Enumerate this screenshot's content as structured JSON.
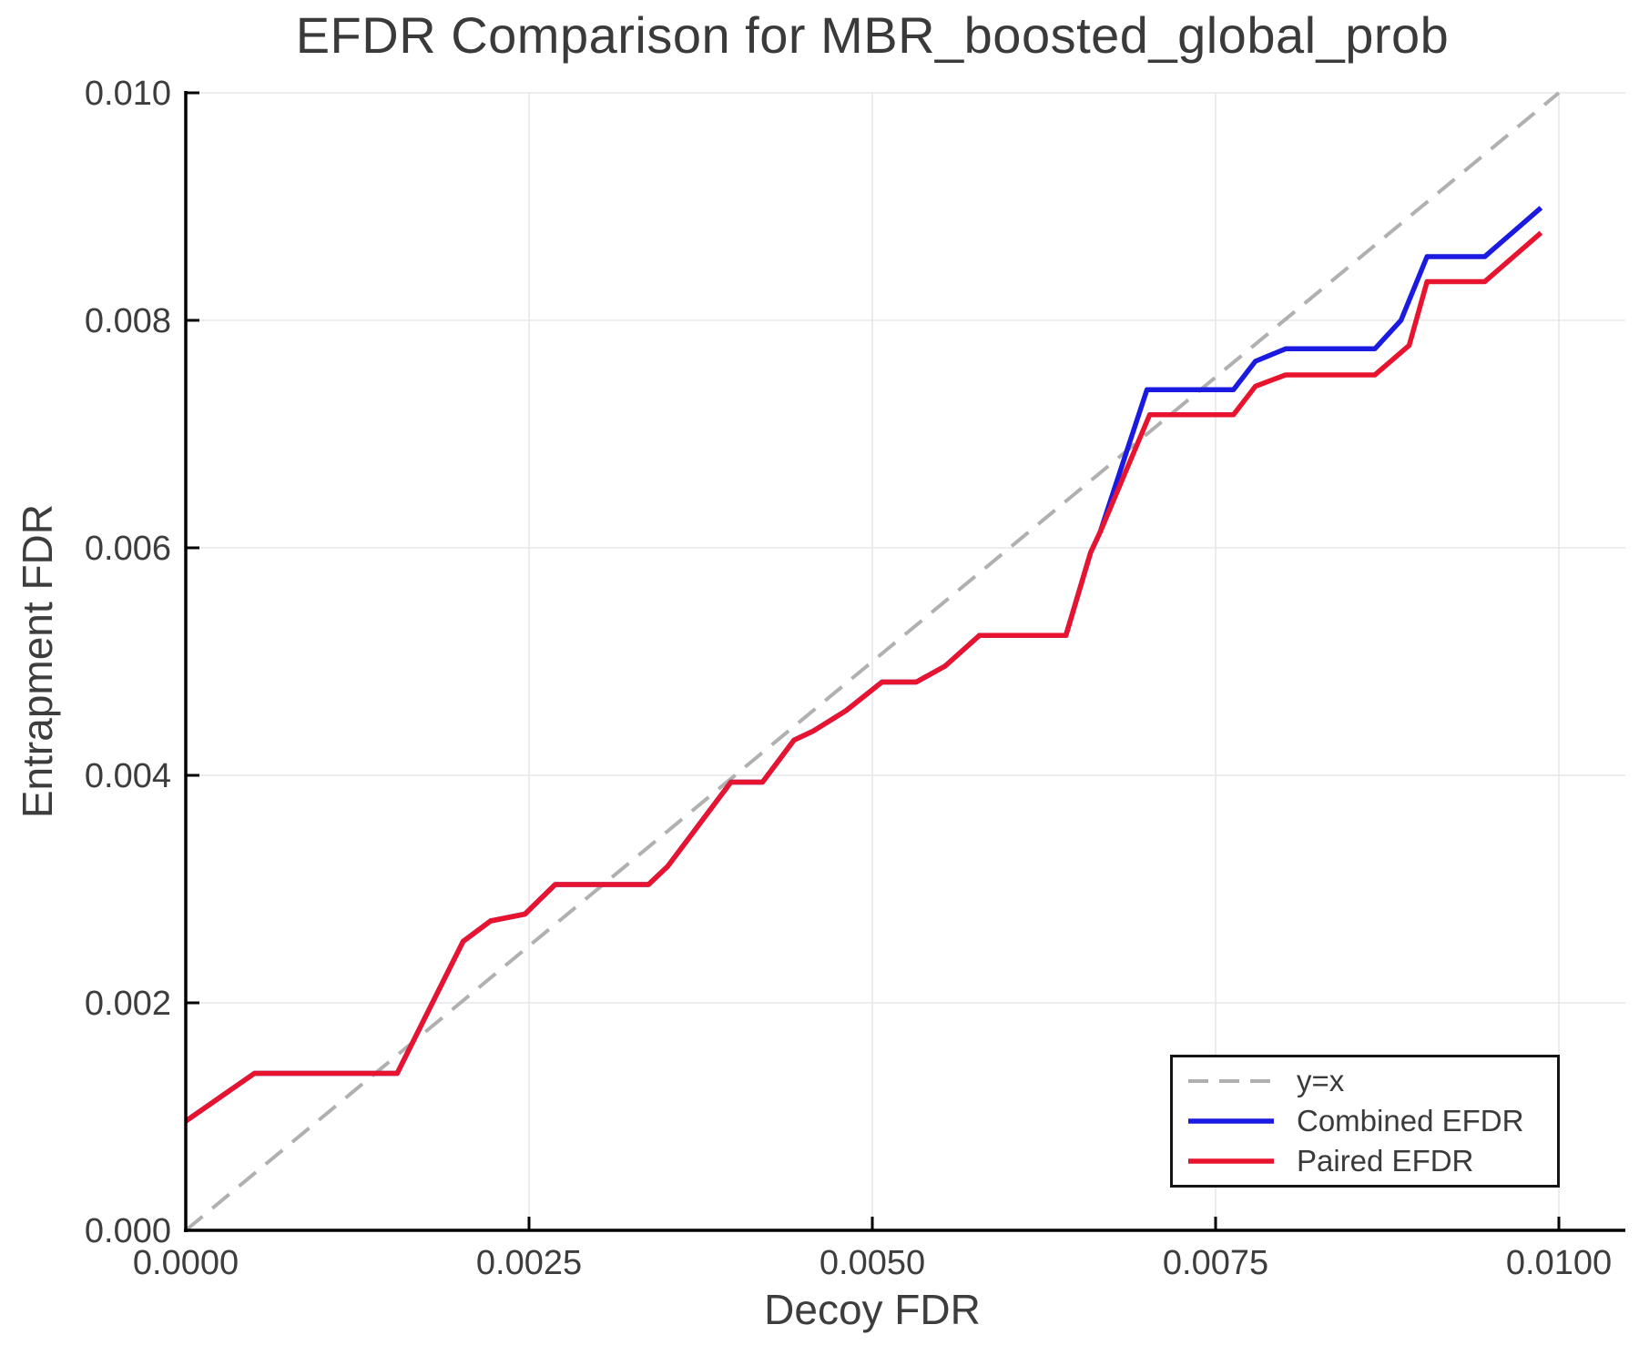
{
  "figure": {
    "background": "#ffffff"
  },
  "chart_data": {
    "type": "line",
    "title": "EFDR Comparison for MBR_boosted_global_prob",
    "xlabel": "Decoy FDR",
    "ylabel": "Entrapment FDR",
    "xlim": [
      0,
      0.010484
    ],
    "ylim": [
      0,
      0.01
    ],
    "grid": true,
    "grid_color": "#e7e7e7",
    "spine_color": "#000000",
    "tick_label_color": "#3d3d3d",
    "legend_position": "lower right",
    "x_ticks": [
      {
        "value": 0.0,
        "label": "0.0000"
      },
      {
        "value": 0.0025,
        "label": "0.0025"
      },
      {
        "value": 0.005,
        "label": "0.0050"
      },
      {
        "value": 0.0075,
        "label": "0.0075"
      },
      {
        "value": 0.01,
        "label": "0.0100"
      }
    ],
    "y_ticks": [
      {
        "value": 0.0,
        "label": "0.000"
      },
      {
        "value": 0.002,
        "label": "0.002"
      },
      {
        "value": 0.004,
        "label": "0.004"
      },
      {
        "value": 0.006,
        "label": "0.006"
      },
      {
        "value": 0.008,
        "label": "0.008"
      },
      {
        "value": 0.01,
        "label": "0.010"
      }
    ],
    "series": [
      {
        "name": "y=x",
        "color": "#b0b0b0",
        "style": "dashed",
        "width": 4,
        "points": [
          [
            0.0,
            0.0
          ],
          [
            0.01,
            0.01
          ]
        ]
      },
      {
        "name": "Combined EFDR",
        "color": "#1a1ae0",
        "style": "solid",
        "width": 5.5,
        "points": [
          [
            0.0,
            0.00096
          ],
          [
            0.0005,
            0.00138
          ],
          [
            0.00154,
            0.00138
          ],
          [
            0.00202,
            0.00254
          ],
          [
            0.00222,
            0.00272
          ],
          [
            0.00247,
            0.00278
          ],
          [
            0.00269,
            0.00304
          ],
          [
            0.00337,
            0.00304
          ],
          [
            0.00351,
            0.0032
          ],
          [
            0.00397,
            0.00394
          ],
          [
            0.0042,
            0.00394
          ],
          [
            0.00443,
            0.00431
          ],
          [
            0.00457,
            0.00439
          ],
          [
            0.00481,
            0.00457
          ],
          [
            0.00507,
            0.00482
          ],
          [
            0.00532,
            0.00482
          ],
          [
            0.00553,
            0.00496
          ],
          [
            0.00578,
            0.00523
          ],
          [
            0.00641,
            0.00523
          ],
          [
            0.00659,
            0.00596
          ],
          [
            0.00666,
            0.00614
          ],
          [
            0.007,
            0.00739
          ],
          [
            0.00763,
            0.00739
          ],
          [
            0.00779,
            0.00764
          ],
          [
            0.00801,
            0.00775
          ],
          [
            0.00866,
            0.00775
          ],
          [
            0.00885,
            0.008
          ],
          [
            0.00904,
            0.00856
          ],
          [
            0.00946,
            0.00856
          ],
          [
            0.00987,
            0.00899
          ]
        ]
      },
      {
        "name": "Paired EFDR",
        "color": "#e8142f",
        "style": "solid",
        "width": 5.5,
        "points": [
          [
            0.0,
            0.00096
          ],
          [
            0.0005,
            0.00138
          ],
          [
            0.00154,
            0.00138
          ],
          [
            0.00202,
            0.00254
          ],
          [
            0.00222,
            0.00272
          ],
          [
            0.00247,
            0.00278
          ],
          [
            0.00269,
            0.00304
          ],
          [
            0.00337,
            0.00304
          ],
          [
            0.00351,
            0.0032
          ],
          [
            0.00397,
            0.00394
          ],
          [
            0.0042,
            0.00394
          ],
          [
            0.00443,
            0.00431
          ],
          [
            0.00457,
            0.00439
          ],
          [
            0.00481,
            0.00457
          ],
          [
            0.00507,
            0.00482
          ],
          [
            0.00532,
            0.00482
          ],
          [
            0.00553,
            0.00496
          ],
          [
            0.00578,
            0.00523
          ],
          [
            0.00641,
            0.00523
          ],
          [
            0.00659,
            0.00596
          ],
          [
            0.00666,
            0.00614
          ],
          [
            0.00702,
            0.00717
          ],
          [
            0.00763,
            0.00717
          ],
          [
            0.00779,
            0.00742
          ],
          [
            0.00801,
            0.00752
          ],
          [
            0.00866,
            0.00752
          ],
          [
            0.00891,
            0.00778
          ],
          [
            0.00904,
            0.00834
          ],
          [
            0.00946,
            0.00834
          ],
          [
            0.00987,
            0.00877
          ]
        ]
      }
    ]
  }
}
